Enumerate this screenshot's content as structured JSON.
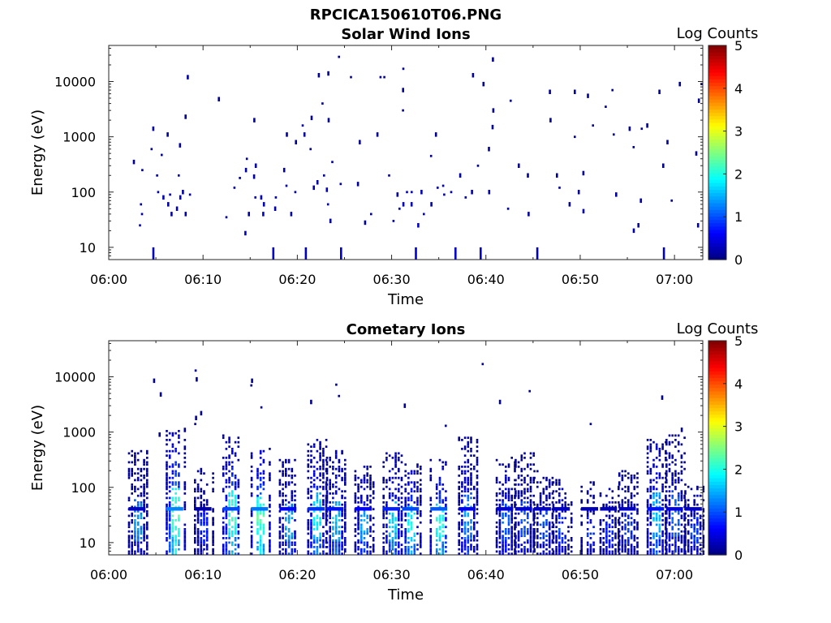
{
  "figure": {
    "filename": "RPCICA150610T06.PNG"
  },
  "panels": [
    {
      "title": "Solar Wind Ions",
      "colorbar": {
        "label": "Log Counts",
        "ticks": [
          "0",
          "1",
          "2",
          "3",
          "4",
          "5"
        ],
        "range": [
          0,
          5
        ]
      },
      "xlabel": "Time",
      "ylabel": "Energy (eV)"
    },
    {
      "title": "Cometary Ions",
      "colorbar": {
        "label": "Log Counts",
        "ticks": [
          "0",
          "1",
          "2",
          "3",
          "4",
          "5"
        ],
        "range": [
          0,
          5
        ]
      },
      "xlabel": "Time",
      "ylabel": "Energy (eV)"
    }
  ],
  "chart_data": [
    {
      "type": "heatmap",
      "title": "Solar Wind Ions",
      "xlabel": "Time",
      "ylabel": "Energy (eV)",
      "yscale": "log",
      "x_ticks": [
        "06:00",
        "06:10",
        "06:20",
        "06:30",
        "06:40",
        "06:50",
        "07:00"
      ],
      "y_ticks": [
        "10",
        "100",
        "1000",
        "10000"
      ],
      "xlim": [
        "06:00",
        "07:03"
      ],
      "ylim": [
        6,
        45000
      ],
      "colorbar_label": "Log Counts",
      "color_range": [
        0,
        5
      ],
      "points": [
        [
          "06:02",
          350,
          0.1
        ],
        [
          "06:03",
          250,
          0.1
        ],
        [
          "06:03",
          60,
          0.2
        ],
        [
          "06:03",
          40,
          0.2
        ],
        [
          "06:03",
          25,
          0.3
        ],
        [
          "06:04",
          1400,
          0.2
        ],
        [
          "06:04",
          600,
          0.1
        ],
        [
          "06:04",
          10,
          0.3
        ],
        [
          "06:05",
          470,
          0.1
        ],
        [
          "06:05",
          200,
          0.2
        ],
        [
          "06:05",
          100,
          0.2
        ],
        [
          "06:05",
          80,
          0.3
        ],
        [
          "06:06",
          1100,
          0.1
        ],
        [
          "06:06",
          90,
          0.3
        ],
        [
          "06:06",
          60,
          0.2
        ],
        [
          "06:06",
          40,
          0.2
        ],
        [
          "06:07",
          700,
          0.2
        ],
        [
          "06:07",
          200,
          0.2
        ],
        [
          "06:07",
          100,
          0.2
        ],
        [
          "06:07",
          80,
          0.3
        ],
        [
          "06:07",
          50,
          0.2
        ],
        [
          "06:08",
          12000,
          0.2
        ],
        [
          "06:08",
          2300,
          0.1
        ],
        [
          "06:08",
          90,
          0.2
        ],
        [
          "06:08",
          40,
          0.2
        ],
        [
          "06:11",
          4800,
          0.1
        ],
        [
          "06:12",
          35,
          0.1
        ],
        [
          "06:13",
          180,
          0.1
        ],
        [
          "06:13",
          120,
          0.2
        ],
        [
          "06:14",
          400,
          0.1
        ],
        [
          "06:14",
          250,
          0.2
        ],
        [
          "06:14",
          40,
          0.2
        ],
        [
          "06:14",
          18,
          0.3
        ],
        [
          "06:15",
          2000,
          0.1
        ],
        [
          "06:15",
          300,
          0.2
        ],
        [
          "06:15",
          190,
          0.2
        ],
        [
          "06:15",
          80,
          0.3
        ],
        [
          "06:16",
          80,
          0.4
        ],
        [
          "06:16",
          60,
          0.3
        ],
        [
          "06:16",
          40,
          0.3
        ],
        [
          "06:17",
          80,
          0.3
        ],
        [
          "06:17",
          50,
          0.2
        ],
        [
          "06:17",
          10,
          0.4
        ],
        [
          "06:18",
          1100,
          0.1
        ],
        [
          "06:18",
          250,
          0.1
        ],
        [
          "06:18",
          130,
          0.2
        ],
        [
          "06:19",
          800,
          0.1
        ],
        [
          "06:19",
          100,
          0.2
        ],
        [
          "06:19",
          40,
          0.2
        ],
        [
          "06:20",
          1600,
          0.2
        ],
        [
          "06:20",
          1100,
          0.2
        ],
        [
          "06:20",
          10,
          0.3
        ],
        [
          "06:21",
          2200,
          0.1
        ],
        [
          "06:21",
          600,
          0.1
        ],
        [
          "06:21",
          120,
          0.2
        ],
        [
          "06:22",
          13000,
          0.1
        ],
        [
          "06:22",
          4000,
          0.1
        ],
        [
          "06:22",
          200,
          0.2
        ],
        [
          "06:22",
          150,
          0.2
        ],
        [
          "06:23",
          14000,
          0.1
        ],
        [
          "06:23",
          2000,
          0.1
        ],
        [
          "06:23",
          350,
          0.2
        ],
        [
          "06:23",
          110,
          0.3
        ],
        [
          "06:23",
          60,
          0.3
        ],
        [
          "06:23",
          30,
          0.2
        ],
        [
          "06:24",
          10,
          0.3
        ],
        [
          "06:24",
          140,
          0.2
        ],
        [
          "06:24",
          28000,
          0.1
        ],
        [
          "06:25",
          12000,
          0.1
        ],
        [
          "06:26",
          800,
          0.1
        ],
        [
          "06:26",
          140,
          0.1
        ],
        [
          "06:27",
          40,
          0.1
        ],
        [
          "06:27",
          28,
          0.2
        ],
        [
          "06:28",
          12000,
          0.1
        ],
        [
          "06:28",
          1100,
          0.1
        ],
        [
          "06:29",
          12000,
          0.1
        ],
        [
          "06:29",
          200,
          0.1
        ],
        [
          "06:30",
          90,
          0.2
        ],
        [
          "06:30",
          50,
          0.2
        ],
        [
          "06:30",
          30,
          0.2
        ],
        [
          "06:31",
          17000,
          0.1
        ],
        [
          "06:31",
          7000,
          0.1
        ],
        [
          "06:31",
          3000,
          0.1
        ],
        [
          "06:31",
          100,
          0.3
        ],
        [
          "06:31",
          60,
          0.3
        ],
        [
          "06:32",
          100,
          0.3
        ],
        [
          "06:32",
          60,
          0.3
        ],
        [
          "06:32",
          25,
          0.4
        ],
        [
          "06:32",
          10,
          0.4
        ],
        [
          "06:33",
          100,
          0.3
        ],
        [
          "06:33",
          40,
          0.3
        ],
        [
          "06:34",
          1100,
          0.1
        ],
        [
          "06:34",
          450,
          0.1
        ],
        [
          "06:34",
          120,
          0.2
        ],
        [
          "06:34",
          60,
          0.2
        ],
        [
          "06:35",
          130,
          0.3
        ],
        [
          "06:35",
          90,
          0.2
        ],
        [
          "06:36",
          100,
          0.3
        ],
        [
          "06:36",
          10,
          0.4
        ],
        [
          "06:37",
          200,
          0.2
        ],
        [
          "06:37",
          80,
          0.2
        ],
        [
          "06:38",
          13000,
          0.1
        ],
        [
          "06:38",
          100,
          0.2
        ],
        [
          "06:39",
          10,
          0.3
        ],
        [
          "06:39",
          300,
          0.1
        ],
        [
          "06:39",
          9000,
          0.1
        ],
        [
          "06:40",
          25000,
          0.1
        ],
        [
          "06:40",
          3000,
          0.1
        ],
        [
          "06:40",
          1500,
          0.1
        ],
        [
          "06:40",
          600,
          0.1
        ],
        [
          "06:40",
          100,
          0.2
        ],
        [
          "06:42",
          4500,
          0.1
        ],
        [
          "06:42",
          50,
          0.2
        ],
        [
          "06:43",
          300,
          0.1
        ],
        [
          "06:44",
          200,
          0.1
        ],
        [
          "06:44",
          40,
          0.2
        ],
        [
          "06:45",
          10,
          0.3
        ],
        [
          "06:46",
          6500,
          0.1
        ],
        [
          "06:46",
          2000,
          0.1
        ],
        [
          "06:47",
          200,
          0.1
        ],
        [
          "06:47",
          120,
          0.2
        ],
        [
          "06:48",
          60,
          0.1
        ],
        [
          "06:49",
          6500,
          0.1
        ],
        [
          "06:49",
          1000,
          0.1
        ],
        [
          "06:49",
          100,
          0.1
        ],
        [
          "06:50",
          5500,
          0.1
        ],
        [
          "06:50",
          220,
          0.1
        ],
        [
          "06:50",
          45,
          0.2
        ],
        [
          "06:51",
          1600,
          0.1
        ],
        [
          "06:52",
          3500,
          0.1
        ],
        [
          "06:53",
          7000,
          0.1
        ],
        [
          "06:53",
          1100,
          0.1
        ],
        [
          "06:53",
          90,
          0.2
        ],
        [
          "06:55",
          1400,
          0.1
        ],
        [
          "06:55",
          650,
          0.1
        ],
        [
          "06:55",
          20,
          0.2
        ],
        [
          "06:56",
          1400,
          0.1
        ],
        [
          "06:56",
          70,
          0.2
        ],
        [
          "06:56",
          25,
          0.2
        ],
        [
          "06:57",
          1600,
          0.1
        ],
        [
          "06:58",
          6500,
          0.1
        ],
        [
          "06:58",
          300,
          0.1
        ],
        [
          "06:58",
          10,
          0.3
        ],
        [
          "06:59",
          800,
          0.1
        ],
        [
          "06:59",
          70,
          0.1
        ],
        [
          "07:00",
          9000,
          0.1
        ],
        [
          "07:02",
          9000,
          0.1
        ],
        [
          "07:02",
          4500,
          0.1
        ],
        [
          "07:02",
          500,
          0.1
        ],
        [
          "07:02",
          25,
          0.2
        ]
      ]
    },
    {
      "type": "heatmap",
      "title": "Cometary Ions",
      "xlabel": "Time",
      "ylabel": "Energy (eV)",
      "yscale": "log",
      "x_ticks": [
        "06:00",
        "06:10",
        "06:20",
        "06:30",
        "06:40",
        "06:50",
        "07:00"
      ],
      "y_ticks": [
        "10",
        "100",
        "1000",
        "10000"
      ],
      "xlim": [
        "06:00",
        "07:03"
      ],
      "ylim": [
        6,
        45000
      ],
      "colorbar_label": "Log Counts",
      "color_range": [
        0,
        5
      ],
      "bursts": [
        {
          "t": "06:03",
          "emax": 450,
          "core": 0.5,
          "peak": 1.4
        },
        {
          "t": "06:07",
          "emax": 1100,
          "core": 1.8,
          "peak": 2.3
        },
        {
          "t": "06:10",
          "emax": 220,
          "core": 0.3,
          "peak": 0.8
        },
        {
          "t": "06:13",
          "emax": 900,
          "core": 1.4,
          "peak": 2.2
        },
        {
          "t": "06:16",
          "emax": 500,
          "core": 1.7,
          "peak": 2.3
        },
        {
          "t": "06:19",
          "emax": 300,
          "core": 0.9,
          "peak": 1.5
        },
        {
          "t": "06:22",
          "emax": 700,
          "core": 1.2,
          "peak": 1.9
        },
        {
          "t": "06:24",
          "emax": 450,
          "core": 1.0,
          "peak": 1.6
        },
        {
          "t": "06:27",
          "emax": 250,
          "core": 0.9,
          "peak": 1.5
        },
        {
          "t": "06:30",
          "emax": 400,
          "core": 1.1,
          "peak": 1.7
        },
        {
          "t": "06:32",
          "emax": 250,
          "core": 1.4,
          "peak": 2.0
        },
        {
          "t": "06:35",
          "emax": 300,
          "core": 1.5,
          "peak": 2.1
        },
        {
          "t": "06:38",
          "emax": 800,
          "core": 0.8,
          "peak": 1.4
        },
        {
          "t": "06:42",
          "emax": 350,
          "core": 0.6,
          "peak": 1.1
        },
        {
          "t": "06:44",
          "emax": 400,
          "core": 0.6,
          "peak": 1.1
        },
        {
          "t": "06:46",
          "emax": 200,
          "core": 0.5,
          "peak": 1.0
        },
        {
          "t": "06:48",
          "emax": 140,
          "core": 0.5,
          "peak": 0.9
        },
        {
          "t": "06:51",
          "emax": 120,
          "core": 0.4,
          "peak": 0.8
        },
        {
          "t": "06:53",
          "emax": 100,
          "core": 0.4,
          "peak": 0.8
        },
        {
          "t": "06:55",
          "emax": 200,
          "core": 0.5,
          "peak": 0.9
        },
        {
          "t": "06:58",
          "emax": 800,
          "core": 1.0,
          "peak": 1.6
        },
        {
          "t": "07:00",
          "emax": 900,
          "core": 0.7,
          "peak": 1.2
        },
        {
          "t": "07:02",
          "emax": 120,
          "core": 0.5,
          "peak": 0.9
        }
      ],
      "points": [
        [
          "06:04",
          8500,
          0.1
        ],
        [
          "06:05",
          4800,
          0.1
        ],
        [
          "06:05",
          900,
          0.1
        ],
        [
          "06:09",
          13000,
          0.1
        ],
        [
          "06:09",
          9000,
          0.1
        ],
        [
          "06:09",
          2200,
          0.1
        ],
        [
          "06:09",
          1800,
          0.1
        ],
        [
          "06:09",
          1400,
          0.1
        ],
        [
          "06:15",
          8500,
          0.1
        ],
        [
          "06:15",
          7000,
          0.1
        ],
        [
          "06:16",
          2800,
          0.1
        ],
        [
          "06:21",
          3500,
          0.1
        ],
        [
          "06:24",
          7200,
          0.1
        ],
        [
          "06:24",
          4500,
          0.1
        ],
        [
          "06:31",
          3000,
          0.1
        ],
        [
          "06:35",
          1300,
          0.1
        ],
        [
          "06:39",
          17000,
          0.1
        ],
        [
          "06:41",
          3500,
          0.1
        ],
        [
          "06:44",
          5500,
          0.1
        ],
        [
          "06:51",
          1400,
          0.1
        ],
        [
          "06:58",
          4200,
          0.1
        ],
        [
          "07:00",
          1100,
          0.1
        ]
      ]
    }
  ]
}
